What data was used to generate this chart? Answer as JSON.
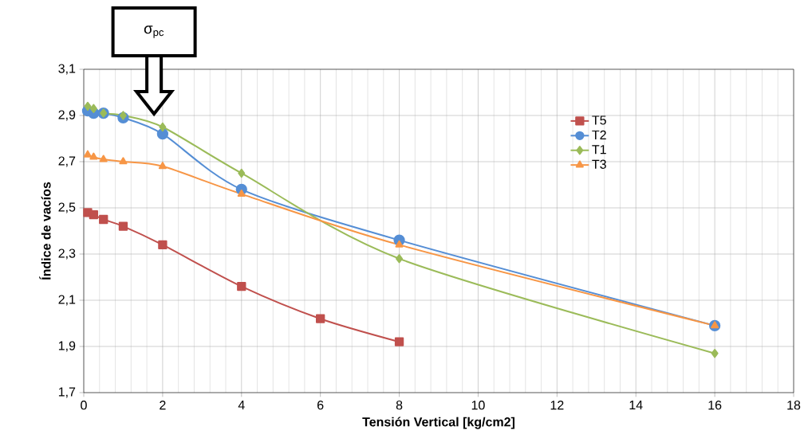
{
  "chart_data": {
    "type": "line",
    "xlabel": "Tensión Vertical [kg/cm2]",
    "ylabel": "Índice de vacíos",
    "annotations": [
      "σ$_{pc}$"
    ],
    "series": [
      {
        "name": "T5",
        "color": "#c0504d",
        "marker": "square",
        "x": [
          0.1,
          0.25,
          0.5,
          1,
          2,
          4,
          6,
          8
        ],
        "values": [
          2.48,
          2.47,
          2.45,
          2.42,
          2.34,
          2.16,
          2.02,
          1.92
        ]
      },
      {
        "name": "T2",
        "color": "#558ed5",
        "marker": "circle",
        "x": [
          0.1,
          0.25,
          0.5,
          1,
          2,
          4,
          8,
          16
        ],
        "values": [
          2.92,
          2.91,
          2.91,
          2.89,
          2.82,
          2.58,
          2.36,
          1.99
        ]
      },
      {
        "name": "T1",
        "color": "#9bbb59",
        "marker": "diamond",
        "x": [
          0.1,
          0.25,
          0.5,
          1,
          2,
          4,
          8,
          16
        ],
        "values": [
          2.94,
          2.93,
          2.91,
          2.9,
          2.85,
          2.65,
          2.28,
          1.87
        ]
      },
      {
        "name": "T3",
        "color": "#f79646",
        "marker": "triangle",
        "x": [
          0.1,
          0.25,
          0.5,
          1,
          2,
          4,
          8,
          16
        ],
        "values": [
          2.73,
          2.72,
          2.71,
          2.7,
          2.68,
          2.56,
          2.34,
          1.99
        ]
      }
    ],
    "xlim": [
      0,
      18
    ],
    "xticks": [
      0,
      2,
      4,
      6,
      8,
      10,
      12,
      14,
      16,
      18
    ],
    "ylim": [
      1.7,
      3.1
    ],
    "yticks": [
      {
        "value": 1.7,
        "label": "1,7"
      },
      {
        "value": 1.9,
        "label": "1,9"
      },
      {
        "value": 2.1,
        "label": "2,1"
      },
      {
        "value": 2.3,
        "label": "2,3"
      },
      {
        "value": 2.5,
        "label": "2,5"
      },
      {
        "value": 2.7,
        "label": "2,7"
      },
      {
        "value": 2.9,
        "label": "2,9"
      },
      {
        "value": 3.1,
        "label": "3,1"
      }
    ],
    "grid": true,
    "legend": "top right",
    "line_style": "solid"
  }
}
